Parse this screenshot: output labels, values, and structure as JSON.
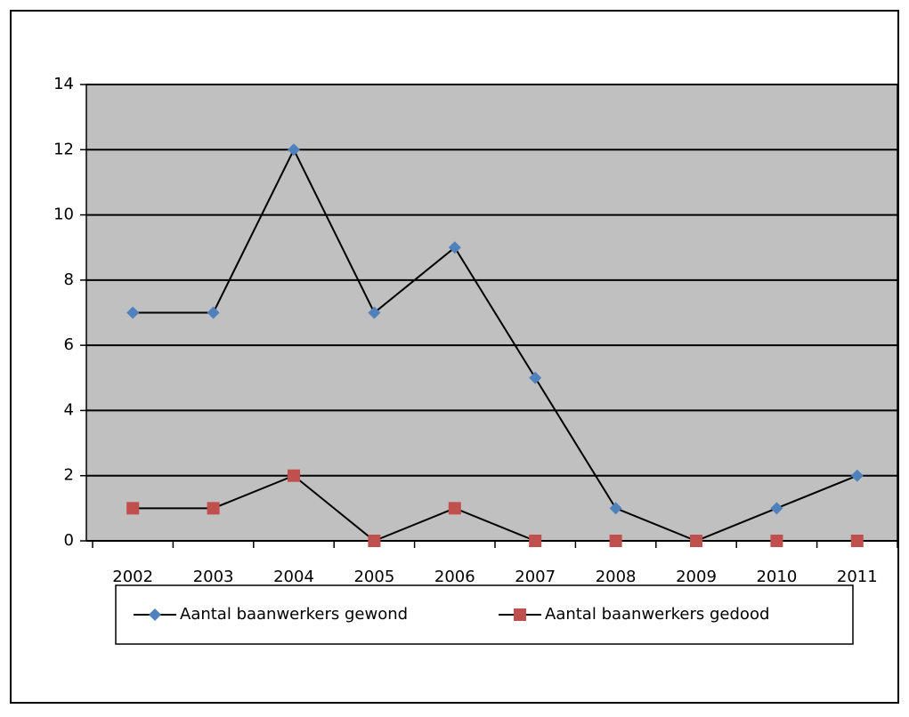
{
  "chart_data": {
    "type": "line",
    "categories": [
      "2002",
      "2003",
      "2004",
      "2005",
      "2006",
      "2007",
      "2008",
      "2009",
      "2010",
      "2011"
    ],
    "series": [
      {
        "name": "Aantal baanwerkers gewond",
        "color": "#4f81bd",
        "marker": "diamond",
        "values": [
          7,
          7,
          12,
          7,
          9,
          5,
          1,
          0,
          1,
          2
        ]
      },
      {
        "name": "Aantal baanwerkers gedood",
        "color": "#c0504d",
        "marker": "square",
        "values": [
          1,
          1,
          2,
          0,
          1,
          0,
          0,
          0,
          0,
          0
        ]
      }
    ],
    "line_color": "#000000",
    "ylim": [
      0,
      14
    ],
    "yticks": [
      0,
      2,
      4,
      6,
      8,
      10,
      12,
      14
    ],
    "grid": true,
    "legend": "bottom"
  }
}
